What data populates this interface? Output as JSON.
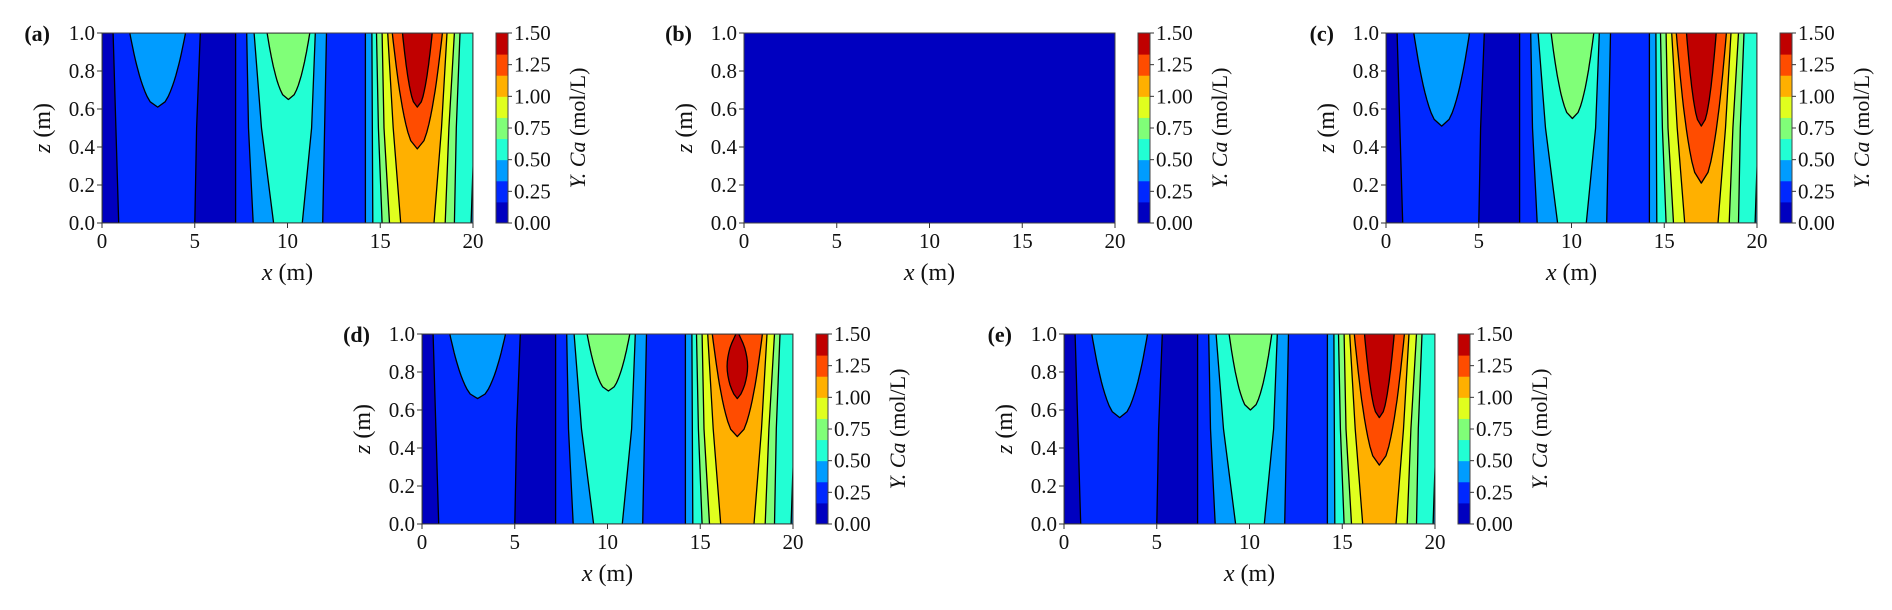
{
  "colormap": [
    "#0000c0",
    "#0028ff",
    "#009cff",
    "#22ffd4",
    "#80ff78",
    "#e0ff1e",
    "#ffb000",
    "#ff4c00",
    "#c00000"
  ],
  "chart_data": [
    {
      "panel": "(a)",
      "type": "contour",
      "xlabel_var": "x",
      "xlabel_unit": " (m)",
      "ylabel_var": "z",
      "ylabel_unit": " (m)",
      "xlim": [
        0,
        20
      ],
      "ylim": [
        0,
        1
      ],
      "xticks": [
        "0",
        "5",
        "10",
        "15",
        "20"
      ],
      "yticks": [
        "0.0",
        "0.2",
        "0.4",
        "0.6",
        "0.8",
        "1.0"
      ],
      "uniform": false,
      "tips": {
        "light_blue_x3": 0.61,
        "green_x10": 0.65,
        "red_orange_x17": 0.39,
        "dark_red_x17": 0.61
      },
      "dark_red_closed_top": false,
      "colorbar": {
        "label_var": "Y. Ca",
        "label_unit": " (mol/L)",
        "range": [
          0,
          1.5
        ],
        "levels": 9,
        "ticks": [
          "0.00",
          "0.25",
          "0.50",
          "0.75",
          "1.00",
          "1.25",
          "1.50"
        ]
      }
    },
    {
      "panel": "(b)",
      "type": "contour",
      "xlabel_var": "x",
      "xlabel_unit": " (m)",
      "ylabel_var": "z",
      "ylabel_unit": " (m)",
      "xlim": [
        0,
        20
      ],
      "ylim": [
        0,
        1
      ],
      "xticks": [
        "0",
        "5",
        "10",
        "15",
        "20"
      ],
      "yticks": [
        "0.0",
        "0.2",
        "0.4",
        "0.6",
        "0.8",
        "1.0"
      ],
      "uniform": true,
      "uniform_value": 0.0,
      "colorbar": {
        "label_var": "Y. Ca",
        "label_unit": " (mol/L)",
        "range": [
          0,
          1.5
        ],
        "levels": 9,
        "ticks": [
          "0.00",
          "0.25",
          "0.50",
          "0.75",
          "1.00",
          "1.25",
          "1.50"
        ]
      }
    },
    {
      "panel": "(c)",
      "type": "contour",
      "xlabel_var": "x",
      "xlabel_unit": " (m)",
      "ylabel_var": "z",
      "ylabel_unit": " (m)",
      "xlim": [
        0,
        20
      ],
      "ylim": [
        0,
        1
      ],
      "xticks": [
        "0",
        "5",
        "10",
        "15",
        "20"
      ],
      "yticks": [
        "0.0",
        "0.2",
        "0.4",
        "0.6",
        "0.8",
        "1.0"
      ],
      "uniform": false,
      "tips": {
        "light_blue_x3": 0.51,
        "green_x10": 0.55,
        "red_orange_x17": 0.21,
        "dark_red_x17": 0.51
      },
      "dark_red_closed_top": false,
      "colorbar": {
        "label_var": "Y. Ca",
        "label_unit": " (mol/L)",
        "range": [
          0,
          1.5
        ],
        "levels": 9,
        "ticks": [
          "0.00",
          "0.25",
          "0.50",
          "0.75",
          "1.00",
          "1.25",
          "1.50"
        ]
      }
    },
    {
      "panel": "(d)",
      "type": "contour",
      "xlabel_var": "x",
      "xlabel_unit": " (m)",
      "ylabel_var": "z",
      "ylabel_unit": " (m)",
      "xlim": [
        0,
        20
      ],
      "ylim": [
        0,
        1
      ],
      "xticks": [
        "0",
        "5",
        "10",
        "15",
        "20"
      ],
      "yticks": [
        "0.0",
        "0.2",
        "0.4",
        "0.6",
        "0.8",
        "1.0"
      ],
      "uniform": false,
      "tips": {
        "light_blue_x3": 0.66,
        "green_x10": 0.7,
        "red_orange_x17": 0.46,
        "dark_red_x17": 0.66
      },
      "dark_red_closed_top": true,
      "colorbar": {
        "label_var": "Y. Ca",
        "label_unit": " (mol/L)",
        "range": [
          0,
          1.5
        ],
        "levels": 9,
        "ticks": [
          "0.00",
          "0.25",
          "0.50",
          "0.75",
          "1.00",
          "1.25",
          "1.50"
        ]
      }
    },
    {
      "panel": "(e)",
      "type": "contour",
      "xlabel_var": "x",
      "xlabel_unit": " (m)",
      "ylabel_var": "z",
      "ylabel_unit": " (m)",
      "xlim": [
        0,
        20
      ],
      "ylim": [
        0,
        1
      ],
      "xticks": [
        "0",
        "5",
        "10",
        "15",
        "20"
      ],
      "yticks": [
        "0.0",
        "0.2",
        "0.4",
        "0.6",
        "0.8",
        "1.0"
      ],
      "uniform": false,
      "tips": {
        "light_blue_x3": 0.56,
        "green_x10": 0.6,
        "red_orange_x17": 0.31,
        "dark_red_x17": 0.56
      },
      "dark_red_closed_top": false,
      "colorbar": {
        "label_var": "Y. Ca",
        "label_unit": " (mol/L)",
        "range": [
          0,
          1.5
        ],
        "levels": 9,
        "ticks": [
          "0.00",
          "0.25",
          "0.50",
          "0.75",
          "1.00",
          "1.25",
          "1.50"
        ]
      }
    }
  ]
}
